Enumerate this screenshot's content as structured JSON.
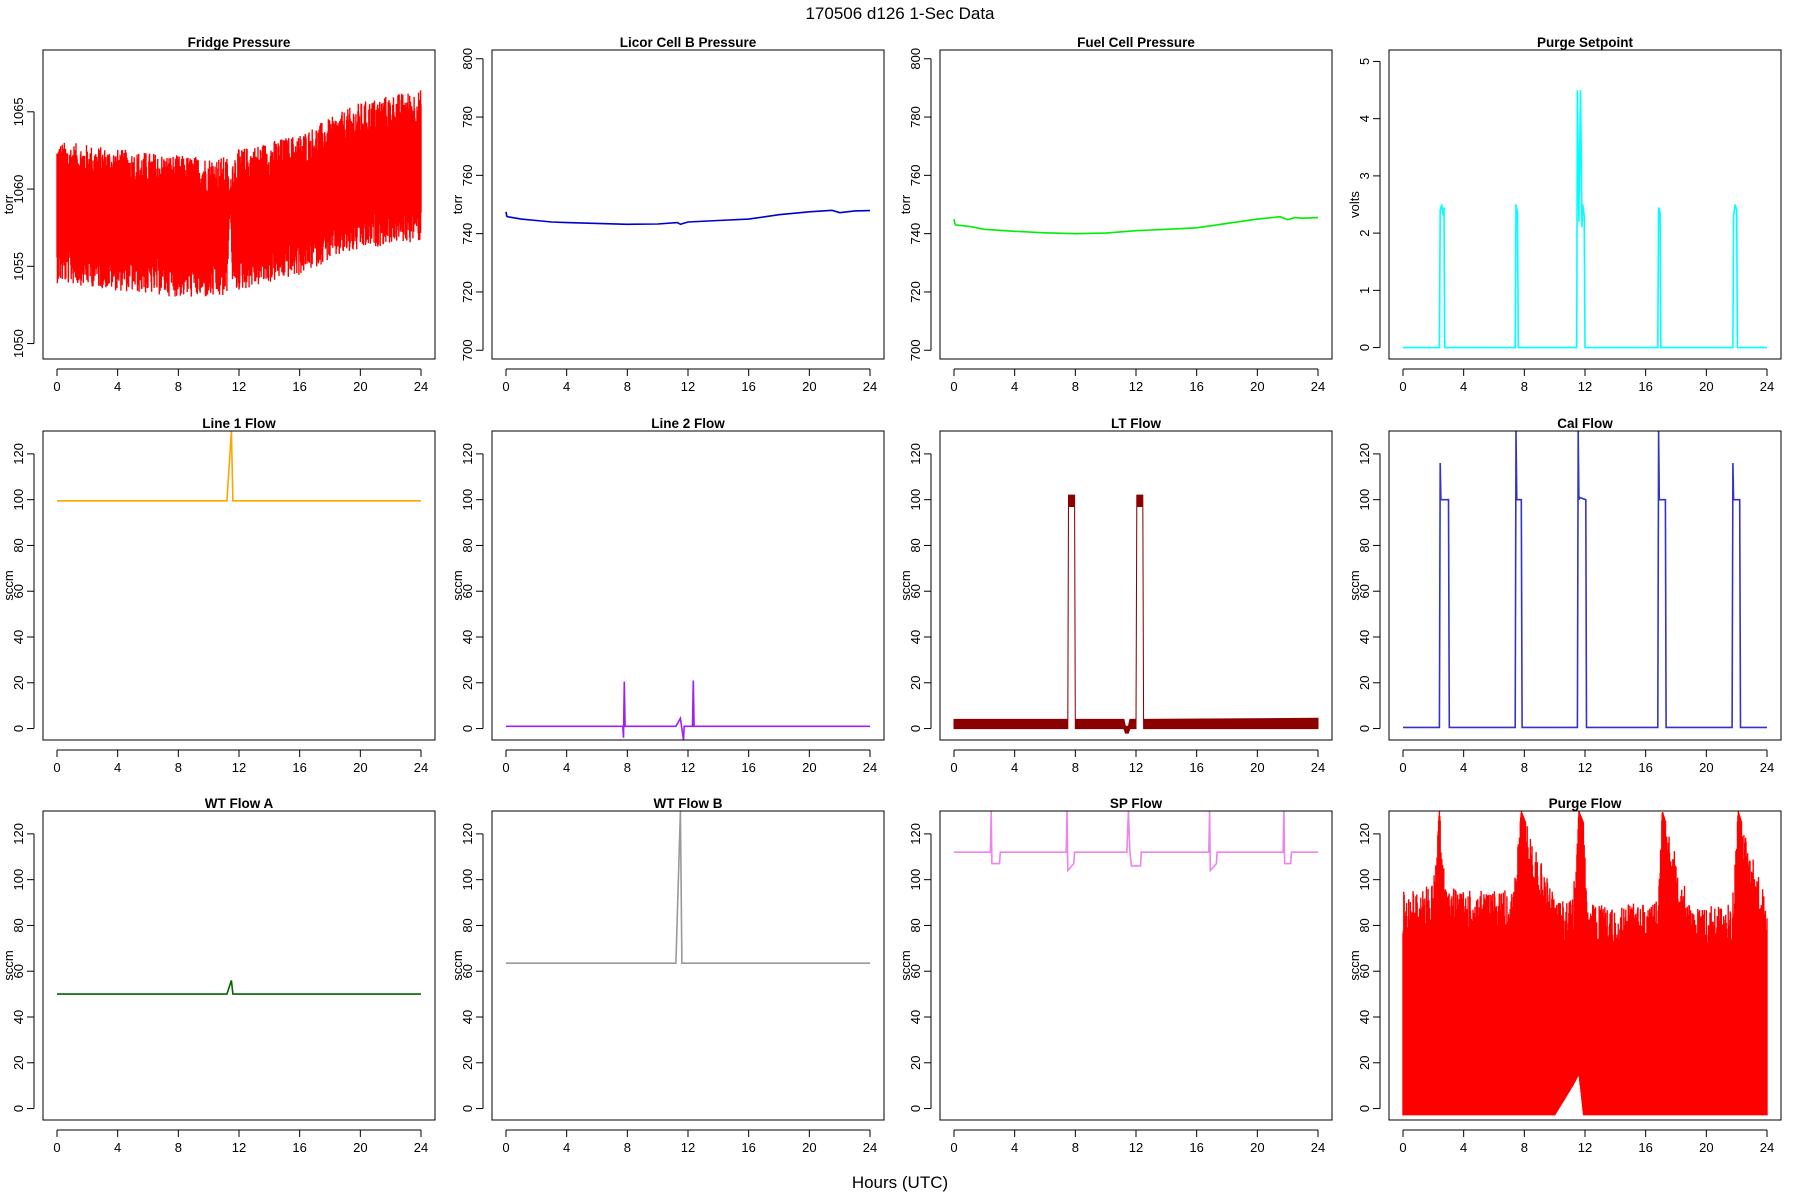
{
  "figure": {
    "title": "170506   d126   1-Sec Data",
    "xlabel": "Hours (UTC)"
  },
  "chart_data": [
    {
      "type": "line",
      "title": "Fridge Pressure",
      "ylabel": "torr",
      "color": "#ff0000",
      "xlim": [
        0,
        24
      ],
      "ylim": [
        1049,
        1069
      ],
      "xticks": [
        0,
        4,
        8,
        12,
        16,
        20,
        24
      ],
      "yticks": [
        1050,
        1055,
        1060,
        1065
      ],
      "style": "noisy_band",
      "series": [
        {
          "x": [
            0,
            2,
            4,
            6,
            8,
            10,
            11.2,
            11.4,
            11.6,
            12,
            14,
            16,
            18,
            20,
            22,
            24
          ],
          "y_center": [
            1058.5,
            1058.3,
            1058.0,
            1057.8,
            1057.6,
            1057.5,
            1057.5,
            1059.5,
            1057.8,
            1058.0,
            1058.5,
            1059.0,
            1060.0,
            1060.8,
            1061.3,
            1061.5
          ],
          "y_spread": [
            4.0,
            4.0,
            4.0,
            4.0,
            4.0,
            4.0,
            4.0,
            0.3,
            4.0,
            4.0,
            4.0,
            4.0,
            4.0,
            4.2,
            4.2,
            4.3
          ]
        }
      ]
    },
    {
      "type": "line",
      "title": "Licor Cell B Pressure",
      "ylabel": "torr",
      "color": "#0000cd",
      "xlim": [
        0,
        24
      ],
      "ylim": [
        697,
        803
      ],
      "xticks": [
        0,
        4,
        8,
        12,
        16,
        20,
        24
      ],
      "yticks": [
        700,
        720,
        740,
        760,
        780,
        800
      ],
      "style": "line",
      "series": [
        {
          "x": [
            0,
            0.05,
            0.1,
            1,
            2,
            3,
            4,
            6,
            8,
            10,
            11.3,
            11.5,
            12,
            14,
            16,
            18,
            20,
            21.5,
            22,
            23,
            24
          ],
          "y": [
            747.5,
            746,
            745.8,
            745,
            744.5,
            744,
            743.8,
            743.5,
            743.2,
            743.3,
            743.8,
            743.2,
            744,
            744.5,
            745,
            746.5,
            747.5,
            748,
            747.2,
            747.8,
            747.9
          ]
        }
      ]
    },
    {
      "type": "line",
      "title": "Fuel Cell Pressure",
      "ylabel": "torr",
      "color": "#00ee00",
      "xlim": [
        0,
        24
      ],
      "ylim": [
        697,
        803
      ],
      "xticks": [
        0,
        4,
        8,
        12,
        16,
        20,
        24
      ],
      "yticks": [
        700,
        720,
        740,
        760,
        780,
        800
      ],
      "style": "line",
      "series": [
        {
          "x": [
            0,
            0.05,
            0.1,
            1,
            2,
            4,
            6,
            8,
            10,
            12,
            14,
            16,
            18,
            20,
            21.5,
            22,
            22.5,
            23,
            24
          ],
          "y": [
            745,
            743.5,
            743,
            742.5,
            741.5,
            740.8,
            740.3,
            740,
            740.2,
            741,
            741.5,
            742,
            743.5,
            745,
            745.8,
            744.8,
            745.5,
            745.3,
            745.5
          ]
        }
      ]
    },
    {
      "type": "line",
      "title": "Purge Setpoint",
      "ylabel": "volts",
      "color": "#00ffff",
      "xlim": [
        0,
        24
      ],
      "ylim": [
        -0.2,
        5.2
      ],
      "xticks": [
        0,
        4,
        8,
        12,
        16,
        20,
        24
      ],
      "yticks": [
        0,
        1,
        2,
        3,
        4,
        5
      ],
      "style": "line",
      "series": [
        {
          "x": [
            0,
            2.4,
            2.45,
            2.55,
            2.65,
            2.7,
            2.75,
            7.4,
            7.45,
            7.55,
            7.6,
            11.45,
            11.5,
            11.6,
            11.7,
            11.8,
            11.85,
            11.95,
            12.0,
            16.8,
            16.85,
            16.95,
            17.0,
            21.75,
            21.8,
            21.9,
            22.0,
            22.05,
            24
          ],
          "y": [
            0,
            0,
            2.4,
            2.5,
            2.3,
            2.45,
            0,
            0,
            2.5,
            2.35,
            0,
            0,
            4.5,
            2.2,
            4.5,
            2.1,
            2.5,
            2.3,
            0,
            0,
            2.45,
            2.35,
            0,
            0,
            2.3,
            2.5,
            2.4,
            0,
            0
          ]
        }
      ]
    },
    {
      "type": "line",
      "title": "Line 1 Flow",
      "ylabel": "sccm",
      "color": "#ffa500",
      "xlim": [
        0,
        24
      ],
      "ylim": [
        -5,
        130
      ],
      "xticks": [
        0,
        4,
        8,
        12,
        16,
        20,
        24
      ],
      "yticks": [
        0,
        20,
        40,
        60,
        80,
        100,
        120
      ],
      "style": "line",
      "series": [
        {
          "x": [
            0,
            11.2,
            11.5,
            11.6,
            24
          ],
          "y": [
            99.5,
            99.5,
            130,
            99.5,
            99.5
          ]
        }
      ]
    },
    {
      "type": "line",
      "title": "Line 2 Flow",
      "ylabel": "sccm",
      "color": "#a020f0",
      "xlim": [
        0,
        24
      ],
      "ylim": [
        -5,
        130
      ],
      "xticks": [
        0,
        4,
        8,
        12,
        16,
        20,
        24
      ],
      "yticks": [
        0,
        20,
        40,
        60,
        80,
        100,
        120
      ],
      "style": "line",
      "series": [
        {
          "x": [
            0,
            7.7,
            7.75,
            7.8,
            7.85,
            7.9,
            11.2,
            11.5,
            11.7,
            11.75,
            12.3,
            12.35,
            12.4,
            24
          ],
          "y": [
            1,
            1,
            -4,
            20.5,
            1,
            1,
            1,
            4.5,
            -5,
            1,
            1,
            21,
            1,
            1
          ]
        }
      ]
    },
    {
      "type": "line",
      "title": "LT Flow",
      "ylabel": "sccm",
      "color": "#8b0000",
      "xlim": [
        0,
        24
      ],
      "ylim": [
        -5,
        130
      ],
      "xticks": [
        0,
        4,
        8,
        12,
        16,
        20,
        24
      ],
      "yticks": [
        0,
        20,
        40,
        60,
        80,
        100,
        120
      ],
      "style": "thick_band",
      "series": [
        {
          "x": [
            0,
            7.5,
            7.55,
            7.95,
            8.0,
            11.2,
            11.3,
            11.5,
            11.6,
            12.0,
            12.05,
            12.45,
            12.5,
            24
          ],
          "y_low": [
            0,
            0,
            97,
            97,
            0,
            0,
            -2,
            -2,
            0,
            0,
            97,
            97,
            0,
            0
          ],
          "y_high": [
            4,
            4,
            102,
            102,
            4,
            4,
            1,
            1,
            4,
            4,
            102,
            102,
            4,
            4.5
          ]
        }
      ]
    },
    {
      "type": "line",
      "title": "Cal Flow",
      "ylabel": "sccm",
      "color": "#3333cc",
      "xlim": [
        0,
        24
      ],
      "ylim": [
        -5,
        130
      ],
      "xticks": [
        0,
        4,
        8,
        12,
        16,
        20,
        24
      ],
      "yticks": [
        0,
        20,
        40,
        60,
        80,
        100,
        120
      ],
      "style": "line",
      "series": [
        {
          "x": [
            0,
            2.4,
            2.45,
            2.5,
            2.55,
            3.0,
            3.05,
            7.4,
            7.45,
            7.5,
            7.55,
            7.8,
            7.85,
            11.5,
            11.55,
            11.6,
            11.65,
            12.05,
            12.1,
            16.8,
            16.85,
            16.9,
            16.95,
            17.3,
            17.35,
            21.7,
            21.75,
            21.8,
            21.85,
            22.2,
            22.25,
            24
          ],
          "y": [
            0.5,
            0.5,
            116,
            100,
            100,
            100,
            0.5,
            0.5,
            130,
            100,
            100,
            100,
            0.5,
            0.5,
            130,
            100,
            101,
            100,
            0.5,
            0.5,
            130,
            100,
            100,
            100,
            0.5,
            0.5,
            116,
            100,
            100,
            100,
            0.5,
            0.5
          ]
        }
      ]
    },
    {
      "type": "line",
      "title": "WT Flow A",
      "ylabel": "sccm",
      "color": "#006400",
      "xlim": [
        0,
        24
      ],
      "ylim": [
        -5,
        130
      ],
      "xticks": [
        0,
        4,
        8,
        12,
        16,
        20,
        24
      ],
      "yticks": [
        0,
        20,
        40,
        60,
        80,
        100,
        120
      ],
      "style": "line",
      "series": [
        {
          "x": [
            0,
            11.2,
            11.5,
            11.6,
            24
          ],
          "y": [
            50,
            50,
            56,
            50,
            50
          ]
        }
      ]
    },
    {
      "type": "line",
      "title": "WT Flow B",
      "ylabel": "sccm",
      "color": "#999999",
      "xlim": [
        0,
        24
      ],
      "ylim": [
        -5,
        130
      ],
      "xticks": [
        0,
        4,
        8,
        12,
        16,
        20,
        24
      ],
      "yticks": [
        0,
        20,
        40,
        60,
        80,
        100,
        120
      ],
      "style": "line",
      "series": [
        {
          "x": [
            0,
            11.2,
            11.5,
            11.6,
            24
          ],
          "y": [
            63.5,
            63.5,
            130,
            63.5,
            63.5
          ]
        }
      ]
    },
    {
      "type": "line",
      "title": "SP Flow",
      "ylabel": "sccm",
      "color": "#ee82ee",
      "xlim": [
        0,
        24
      ],
      "ylim": [
        -5,
        130
      ],
      "xticks": [
        0,
        4,
        8,
        12,
        16,
        20,
        24
      ],
      "yticks": [
        0,
        20,
        40,
        60,
        80,
        100,
        120
      ],
      "style": "line",
      "series": [
        {
          "x": [
            0,
            2.4,
            2.45,
            2.5,
            3.0,
            3.05,
            7.4,
            7.45,
            7.5,
            7.9,
            7.95,
            11.4,
            11.5,
            11.6,
            11.7,
            12.3,
            12.35,
            16.8,
            16.85,
            16.9,
            17.3,
            17.35,
            21.7,
            21.75,
            21.8,
            22.2,
            22.25,
            24
          ],
          "y": [
            112,
            112,
            130,
            107,
            107,
            112,
            112,
            130,
            104,
            107,
            112,
            112,
            130,
            112,
            106,
            106,
            112,
            112,
            130,
            104,
            107,
            112,
            112,
            130,
            107,
            107,
            112,
            112
          ]
        }
      ]
    },
    {
      "type": "line",
      "title": "Purge Flow",
      "ylabel": "sccm",
      "color": "#ff0000",
      "xlim": [
        0,
        24
      ],
      "ylim": [
        -5,
        130
      ],
      "xticks": [
        0,
        4,
        8,
        12,
        16,
        20,
        24
      ],
      "yticks": [
        0,
        20,
        40,
        60,
        80,
        100,
        120
      ],
      "style": "noisy_fill",
      "series": [
        {
          "x": [
            0,
            2,
            2.4,
            2.8,
            4,
            7.3,
            7.8,
            10,
            11.2,
            11.6,
            11.9,
            12.2,
            14,
            16.8,
            17.1,
            19,
            21.7,
            22.1,
            24
          ],
          "y_low": [
            -3,
            -3,
            -3,
            -3,
            -3,
            -3,
            -3,
            -3,
            10,
            15,
            -3,
            -3,
            -3,
            -3,
            -3,
            -3,
            -3,
            -3,
            -3
          ],
          "y_high": [
            95,
            98,
            130,
            98,
            95,
            96,
            130,
            92,
            92,
            130,
            125,
            90,
            88,
            92,
            130,
            88,
            90,
            130,
            90
          ]
        }
      ]
    }
  ]
}
